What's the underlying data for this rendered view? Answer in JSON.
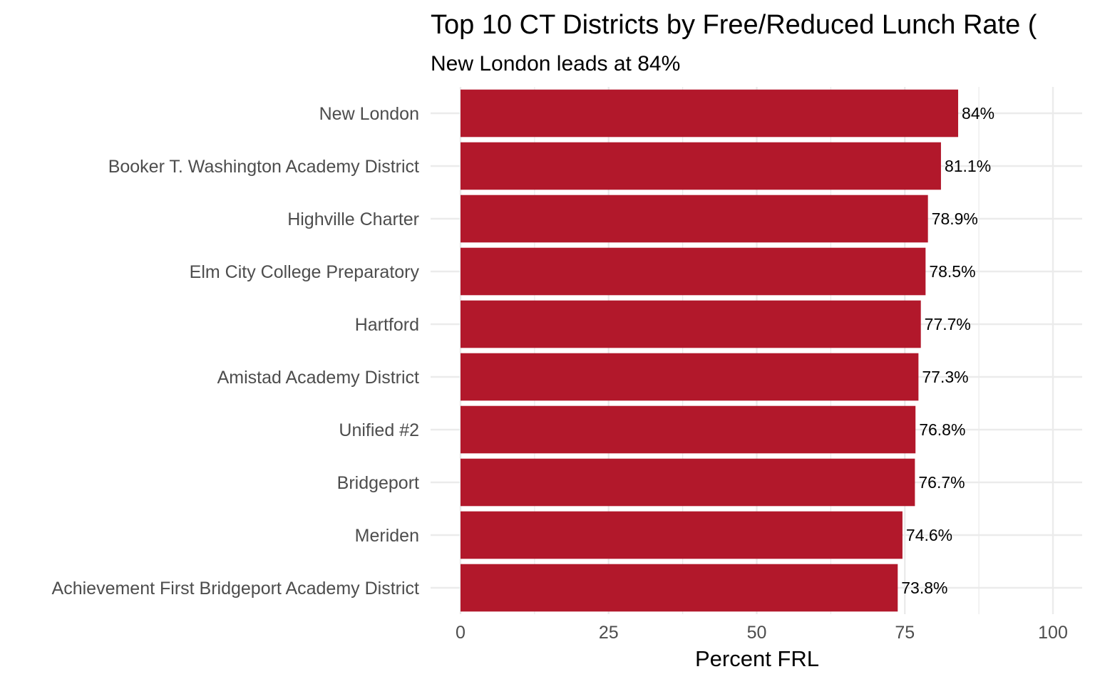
{
  "chart_data": {
    "type": "bar",
    "orientation": "horizontal",
    "title": "Top 10 CT Districts by Free/Reduced Lunch Rate (",
    "subtitle": "New London leads at 84%",
    "xlabel": "Percent FRL",
    "ylabel": "",
    "xlim": [
      0,
      100
    ],
    "xticks": [
      0,
      25,
      50,
      75,
      100
    ],
    "grid": true,
    "bar_color": "#B2182B",
    "categories": [
      "New London",
      "Booker T. Washington Academy District",
      "Highville Charter",
      "Elm City College Preparatory",
      "Hartford",
      "Amistad Academy District",
      "Unified #2",
      "Bridgeport",
      "Meriden",
      "Achievement First Bridgeport Academy District"
    ],
    "values": [
      84,
      81.1,
      78.9,
      78.5,
      77.7,
      77.3,
      76.8,
      76.7,
      74.6,
      73.8
    ],
    "data_labels": [
      "84%",
      "81.1%",
      "78.9%",
      "78.5%",
      "77.7%",
      "77.3%",
      "76.8%",
      "76.7%",
      "74.6%",
      "73.8%"
    ]
  }
}
